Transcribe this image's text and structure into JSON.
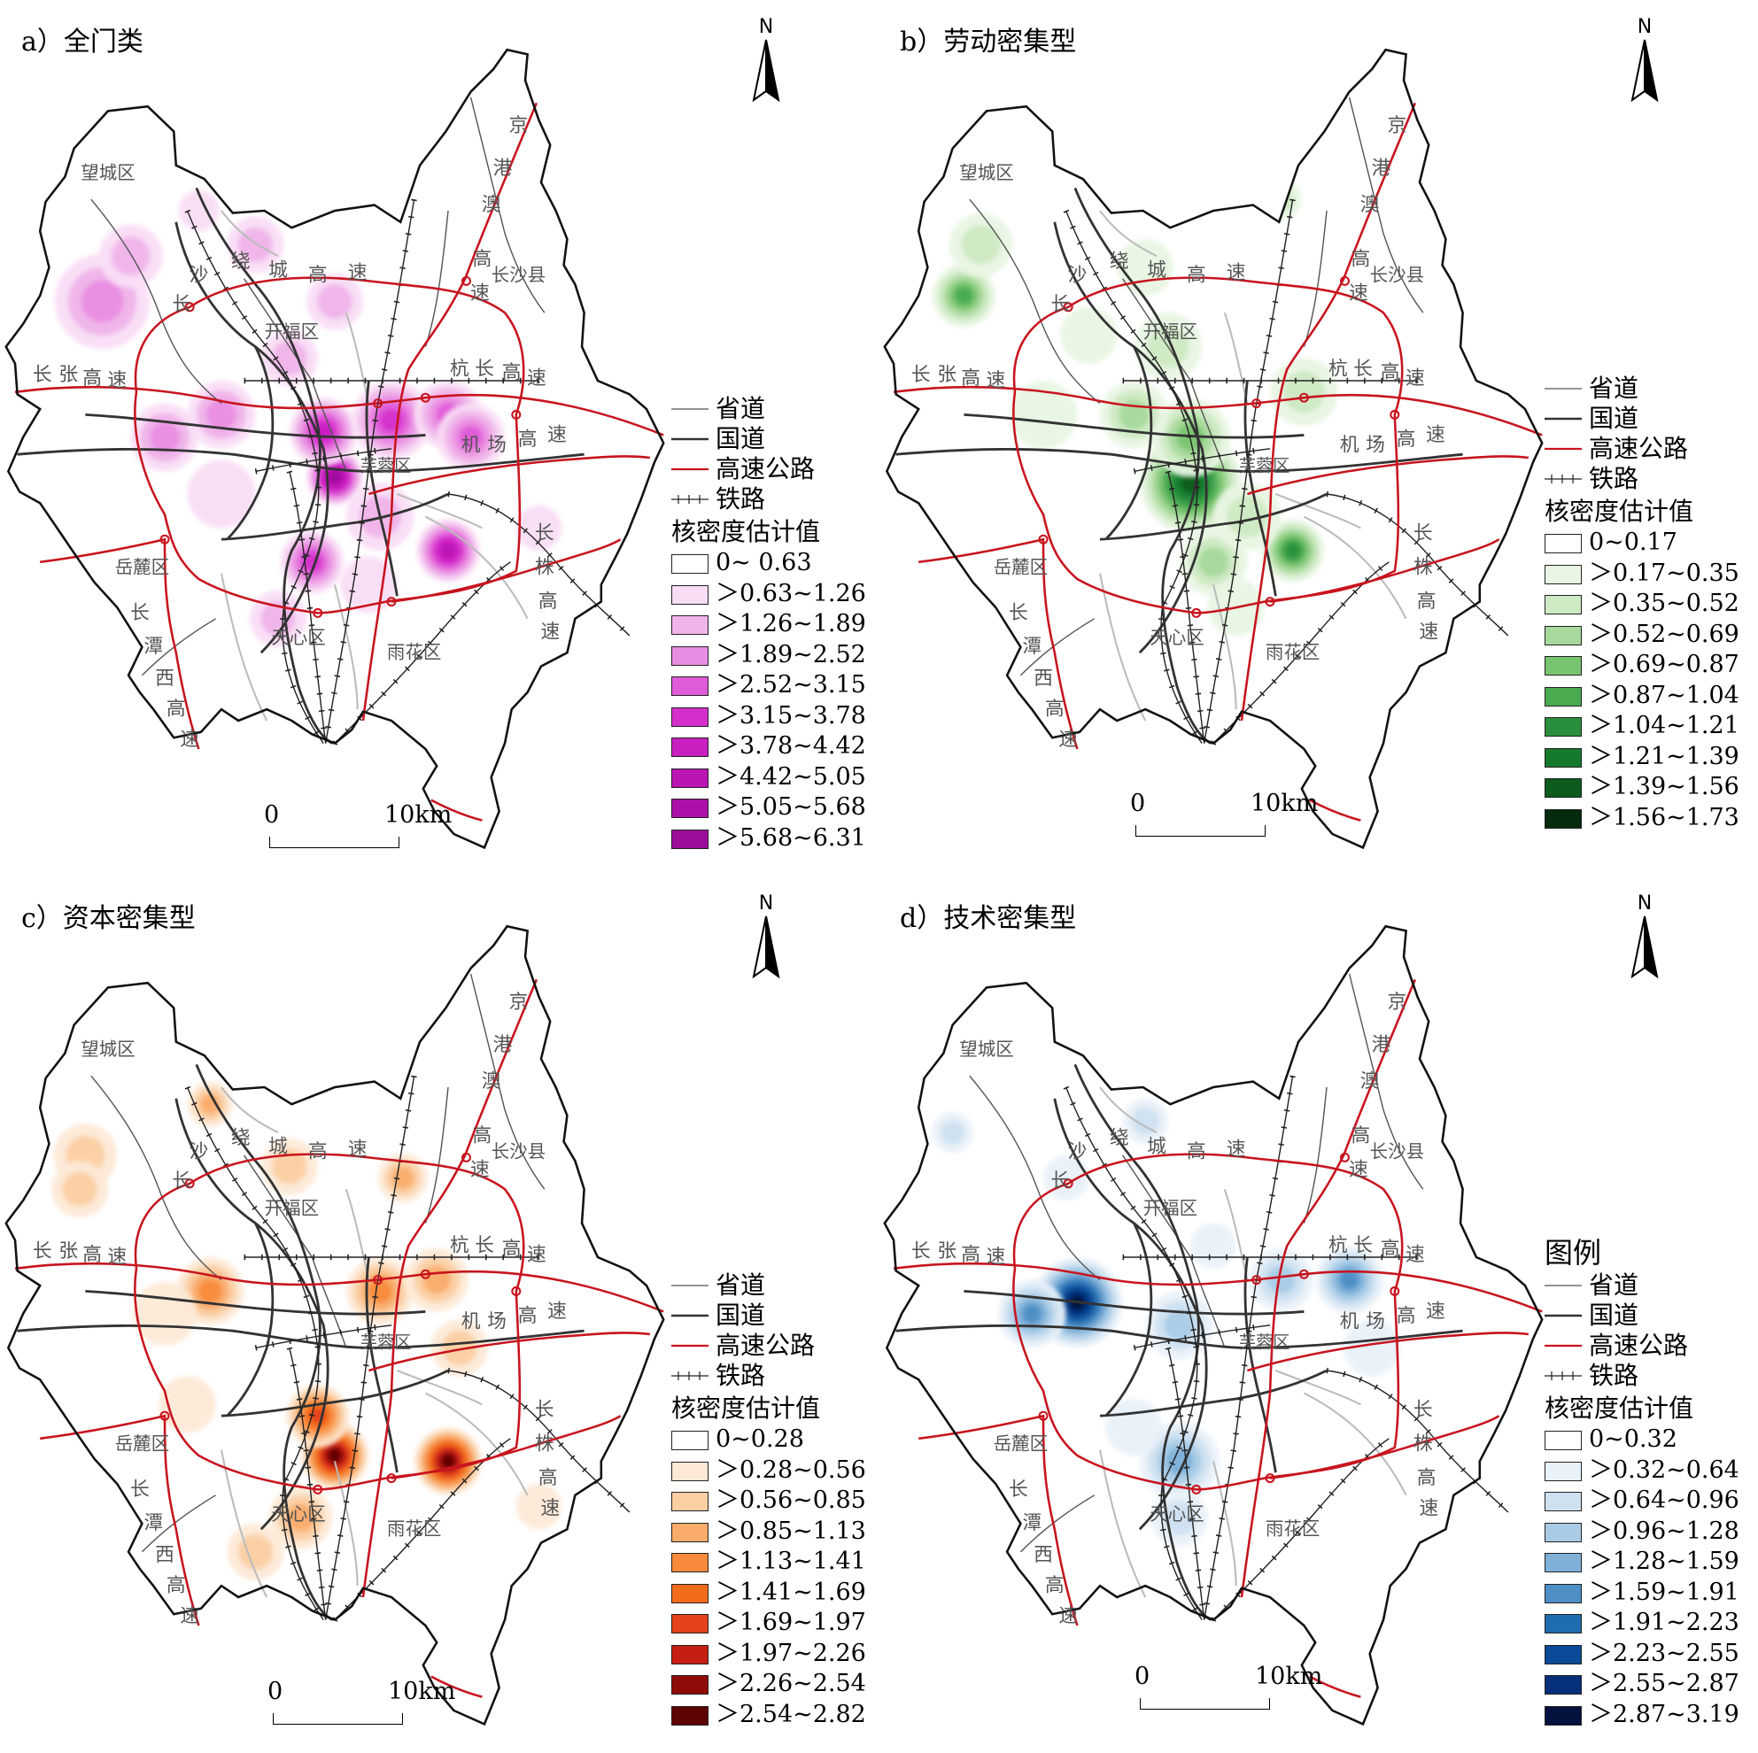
{
  "line_legend": {
    "provincial_road": "省道",
    "national_road": "国道",
    "expressway": "高速公路",
    "railway": "铁路"
  },
  "legend_heading": "图例",
  "kde_heading": "核密度估计值",
  "scale": {
    "zero": "0",
    "ten": "10km"
  },
  "north_label": "N",
  "map_labels": {
    "wangcheng": "望城区",
    "kaifu": "开福区",
    "furong": "芙蓉区",
    "yuelu": "岳麓区",
    "yuhua": "雨花区",
    "tianxin": "天心区",
    "changsha_county": "长沙县",
    "ring_road": [
      "长",
      "沙",
      "绕",
      "城",
      "高",
      "速"
    ],
    "changzhang": [
      "长",
      "张",
      "高",
      "速"
    ],
    "hangchang": [
      "杭",
      "长",
      "高",
      "速"
    ],
    "airport": [
      "机",
      "场",
      "高",
      "速"
    ],
    "jinggang": [
      "京",
      "港",
      "澳",
      "高",
      "速"
    ],
    "changtanxi": [
      "长",
      "潭",
      "西",
      "高",
      "速"
    ],
    "changzhu": [
      "长",
      "株",
      "高",
      "速"
    ]
  },
  "colors": {
    "expressway": "#c8141e",
    "national_road": "#333333",
    "provincial_road": "#555555",
    "minor_road": "#bbbbbb"
  },
  "panels": [
    {
      "key": "a",
      "title": "a）全门类",
      "classes": [
        "0~ 0.63",
        "＞0.63~1.26",
        "＞1.26~1.89",
        "＞1.89~2.52",
        "＞2.52~3.15",
        "＞3.15~3.78",
        "＞3.78~4.42",
        "＞4.42~5.05",
        "＞5.05~5.68",
        "＞5.68~6.31"
      ],
      "ramp": [
        "#ffffff",
        "#f9ddf5",
        "#f0b4ea",
        "#e98de2",
        "#e05bd8",
        "#d52fcb",
        "#c91ec0",
        "#bb15b4",
        "#ac10a8",
        "#9c0e99"
      ]
    },
    {
      "key": "b",
      "title": "b）劳动密集型",
      "classes": [
        "0~0.17",
        "＞0.17~0.35",
        "＞0.35~0.52",
        "＞0.52~0.69",
        "＞0.69~0.87",
        "＞0.87~1.04",
        "＞1.04~1.21",
        "＞1.21~1.39",
        "＞1.39~1.56",
        "＞1.56~1.73"
      ],
      "ramp": [
        "#ffffff",
        "#e8f5e3",
        "#cdeac4",
        "#a6d99b",
        "#79c470",
        "#4aaa50",
        "#2a8f3c",
        "#167a2c",
        "#0b5c1d",
        "#062a0c"
      ]
    },
    {
      "key": "c",
      "title": "c）资本密集型",
      "classes": [
        "0~0.28",
        "＞0.28~0.56",
        "＞0.56~0.85",
        "＞0.85~1.13",
        "＞1.13~1.41",
        "＞1.41~1.69",
        "＞1.69~1.97",
        "＞1.97~2.26",
        "＞2.26~2.54",
        "＞2.54~2.82"
      ],
      "ramp": [
        "#ffffff",
        "#fde9d6",
        "#fbcfa3",
        "#f9ac6b",
        "#f78b3b",
        "#f26b1a",
        "#e4421b",
        "#c61e12",
        "#8e0b08",
        "#5c0404"
      ]
    },
    {
      "key": "d",
      "title": "d）技术密集型",
      "classes": [
        "0~0.32",
        "＞0.32~0.64",
        "＞0.64~0.96",
        "＞0.96~1.28",
        "＞1.28~1.59",
        "＞1.59~1.91",
        "＞1.91~2.23",
        "＞2.23~2.55",
        "＞2.55~2.87",
        "＞2.87~3.19"
      ],
      "ramp": [
        "#ffffff",
        "#e9f1f9",
        "#cfe1f1",
        "#a9cbe6",
        "#7eb0d8",
        "#4d8fc6",
        "#1f6cb0",
        "#0a4a98",
        "#06307a",
        "#04123e"
      ]
    }
  ]
}
